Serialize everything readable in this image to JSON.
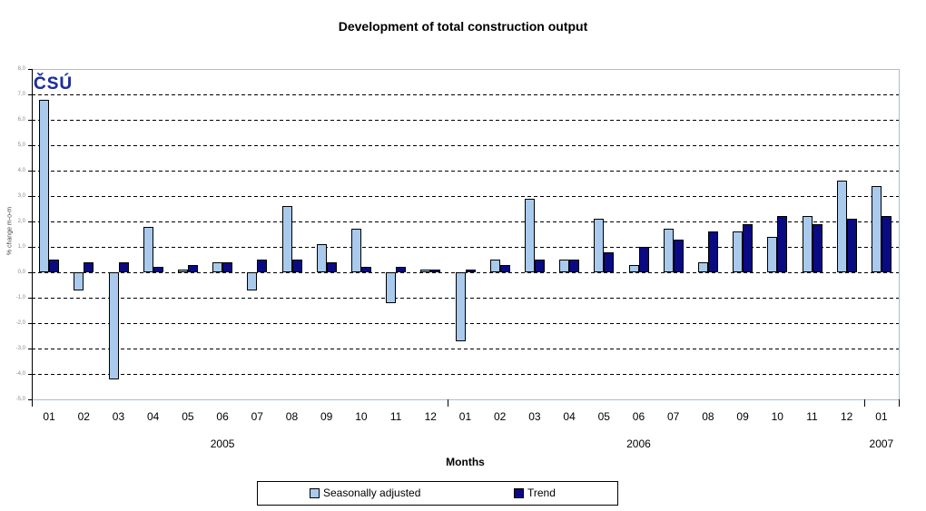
{
  "title": "Development of total construction output",
  "logo": {
    "text": "ČSÚ"
  },
  "legend": {
    "position": "bottom"
  },
  "chart_data": {
    "type": "bar",
    "title": "Development of total construction output",
    "xlabel": "Months",
    "ylabel": "% change m-o-m",
    "ylim": [
      -5,
      8
    ],
    "ytick_step": 1,
    "grid": "horizontal-dashed",
    "legend_position": "bottom",
    "ytick_labels": [
      "8,0",
      "7,0",
      "6,0",
      "5,0",
      "4,0",
      "3,0",
      "2,0",
      "1,0",
      "0,0",
      "-1,0",
      "-2,0",
      "-3,0",
      "-4,0",
      "-5,0"
    ],
    "years": [
      {
        "label": "2005",
        "months": [
          "01",
          "02",
          "03",
          "04",
          "05",
          "06",
          "07",
          "08",
          "09",
          "10",
          "11",
          "12"
        ]
      },
      {
        "label": "2006",
        "months": [
          "01",
          "02",
          "03",
          "04",
          "05",
          "06",
          "07",
          "08",
          "09",
          "10",
          "11",
          "12"
        ]
      },
      {
        "label": "2007",
        "months": [
          "01"
        ]
      }
    ],
    "series": [
      {
        "name": "Seasonally adjusted",
        "color": "#A9CAEC",
        "values": [
          6.8,
          -0.7,
          -4.2,
          1.8,
          0.1,
          0.4,
          -0.7,
          2.6,
          1.1,
          1.7,
          -1.2,
          0.1,
          -2.7,
          0.5,
          2.9,
          0.5,
          2.1,
          0.3,
          1.7,
          0.4,
          1.6,
          1.4,
          2.2,
          3.6,
          3.4
        ]
      },
      {
        "name": "Trend",
        "color": "#0A0A82",
        "values": [
          0.5,
          0.4,
          0.4,
          0.2,
          0.3,
          0.4,
          0.5,
          0.5,
          0.4,
          0.2,
          0.2,
          0.1,
          0.1,
          0.3,
          0.5,
          0.5,
          0.8,
          1.0,
          1.3,
          1.6,
          1.9,
          2.2,
          1.9,
          2.1,
          2.2
        ]
      }
    ],
    "colors": {
      "grid": "#000000",
      "frame": "#A3BEDC",
      "bar_border": "#000000",
      "logo": "#1E2F9E"
    }
  }
}
